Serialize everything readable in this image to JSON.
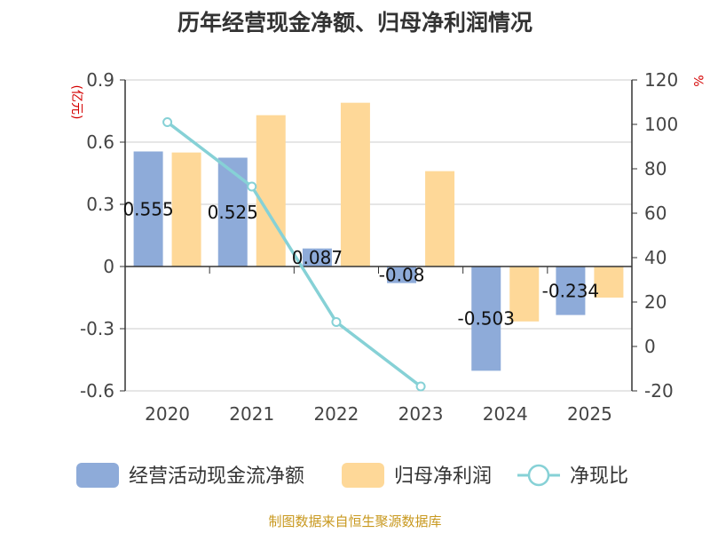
{
  "chart_data": {
    "type": "bar",
    "title": "历年经营现金净额、归母净利润情况",
    "source": "制图数据来自恒生聚源数据库",
    "categories": [
      "2020",
      "2021",
      "2022",
      "2023",
      "2024",
      "2025"
    ],
    "left_axis": {
      "unit": "(亿元)",
      "ylim": [
        -0.6,
        0.9
      ],
      "ticks": [
        "0.9",
        "0.6",
        "0.3",
        "0",
        "-0.3",
        "-0.6"
      ]
    },
    "right_axis": {
      "unit": "%",
      "ylim": [
        -20,
        120
      ],
      "ticks": [
        "120",
        "100",
        "80",
        "60",
        "40",
        "20",
        "0",
        "-20"
      ]
    },
    "series": [
      {
        "name": "经营活动现金流净额",
        "kind": "bar",
        "axis": "left",
        "color": "#8eabd9",
        "values": [
          0.555,
          0.525,
          0.087,
          -0.08,
          -0.503,
          -0.234
        ],
        "labels": [
          "0.555",
          "0.525",
          "0.087",
          "-0.08",
          "-0.503",
          "-0.234"
        ]
      },
      {
        "name": "归母净利润",
        "kind": "bar",
        "axis": "left",
        "color": "#fed898",
        "values": [
          0.55,
          0.73,
          0.79,
          0.46,
          -0.265,
          -0.15
        ]
      },
      {
        "name": "净现比",
        "kind": "line",
        "axis": "right",
        "color": "#86d1d6",
        "values": [
          101,
          72,
          11,
          -18,
          null,
          null
        ]
      }
    ]
  }
}
